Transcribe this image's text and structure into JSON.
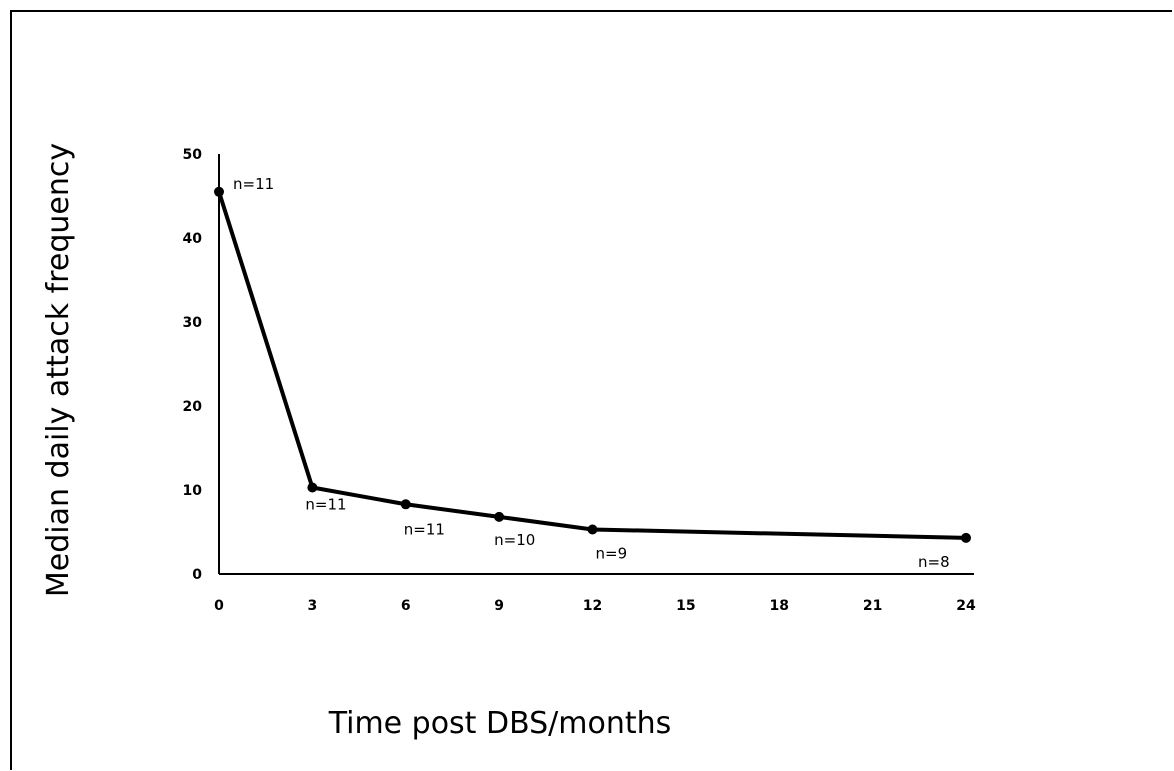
{
  "chart_data": {
    "type": "line",
    "title": "",
    "xlabel": "Time post DBS/months",
    "ylabel": "Median daily attack frequency",
    "x_ticks": [
      0,
      3,
      6,
      9,
      12,
      15,
      18,
      21,
      24
    ],
    "y_ticks": [
      0,
      10,
      20,
      30,
      40,
      50
    ],
    "xlim": [
      0,
      24
    ],
    "ylim": [
      0,
      50
    ],
    "grid": false,
    "series": [
      {
        "x": [
          0,
          3,
          6,
          9,
          12,
          24
        ],
        "y": [
          45.5,
          10.3,
          8.3,
          6.8,
          5.3,
          4.3
        ],
        "annotations": [
          "n=11",
          "n=11",
          "n=11",
          "n=10",
          "n=9",
          "n=8"
        ],
        "color": "#000000"
      }
    ]
  }
}
